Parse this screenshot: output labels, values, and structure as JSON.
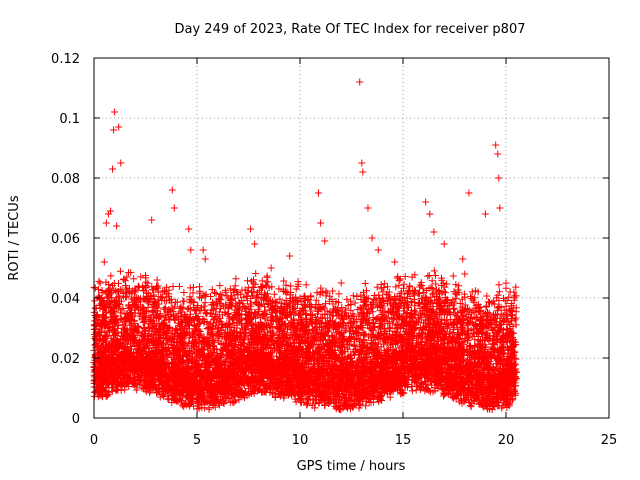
{
  "chart_data": {
    "type": "scatter",
    "title": "Day 249 of 2023, Rate Of TEC Index for receiver p807",
    "xlabel": "GPS time / hours",
    "ylabel": "ROTI / TECUs",
    "xlim": [
      0,
      25
    ],
    "ylim": [
      0,
      0.12
    ],
    "x_ticks": [
      "0",
      "5",
      "10",
      "15",
      "20",
      "25"
    ],
    "y_ticks": [
      "0",
      "0.02",
      "0.04",
      "0.06",
      "0.08",
      "0.1",
      "0.12"
    ],
    "grid": true,
    "marker": "plus",
    "color": "#ff0000",
    "series": [
      {
        "x": [
          0.9,
          1.0,
          0.95,
          1.2,
          1.3,
          0.8,
          0.7,
          0.6,
          1.1,
          0.5,
          2.8,
          3.8,
          3.9,
          4.6,
          4.7,
          5.3,
          5.4,
          7.6,
          7.8,
          8.6,
          9.5,
          10.9,
          11.0,
          11.2,
          12.9,
          13.0,
          13.05,
          13.3,
          13.5,
          13.8,
          14.6,
          16.1,
          16.3,
          16.5,
          17.0,
          17.9,
          18.2,
          19.0,
          19.5,
          19.6,
          19.65,
          19.7,
          20.2,
          0.3,
          2.0,
          6.0,
          8.0,
          10.0,
          12.0,
          14.0,
          18.0,
          20.0
        ],
        "y": [
          0.083,
          0.102,
          0.096,
          0.097,
          0.085,
          0.069,
          0.068,
          0.065,
          0.064,
          0.052,
          0.066,
          0.076,
          0.07,
          0.063,
          0.056,
          0.056,
          0.053,
          0.063,
          0.058,
          0.05,
          0.054,
          0.075,
          0.065,
          0.059,
          0.112,
          0.085,
          0.082,
          0.07,
          0.06,
          0.056,
          0.052,
          0.072,
          0.068,
          0.062,
          0.058,
          0.053,
          0.075,
          0.068,
          0.091,
          0.088,
          0.08,
          0.07,
          0.042,
          0.045,
          0.042,
          0.038,
          0.04,
          0.03,
          0.045,
          0.04,
          0.048,
          0.035
        ]
      }
    ]
  }
}
